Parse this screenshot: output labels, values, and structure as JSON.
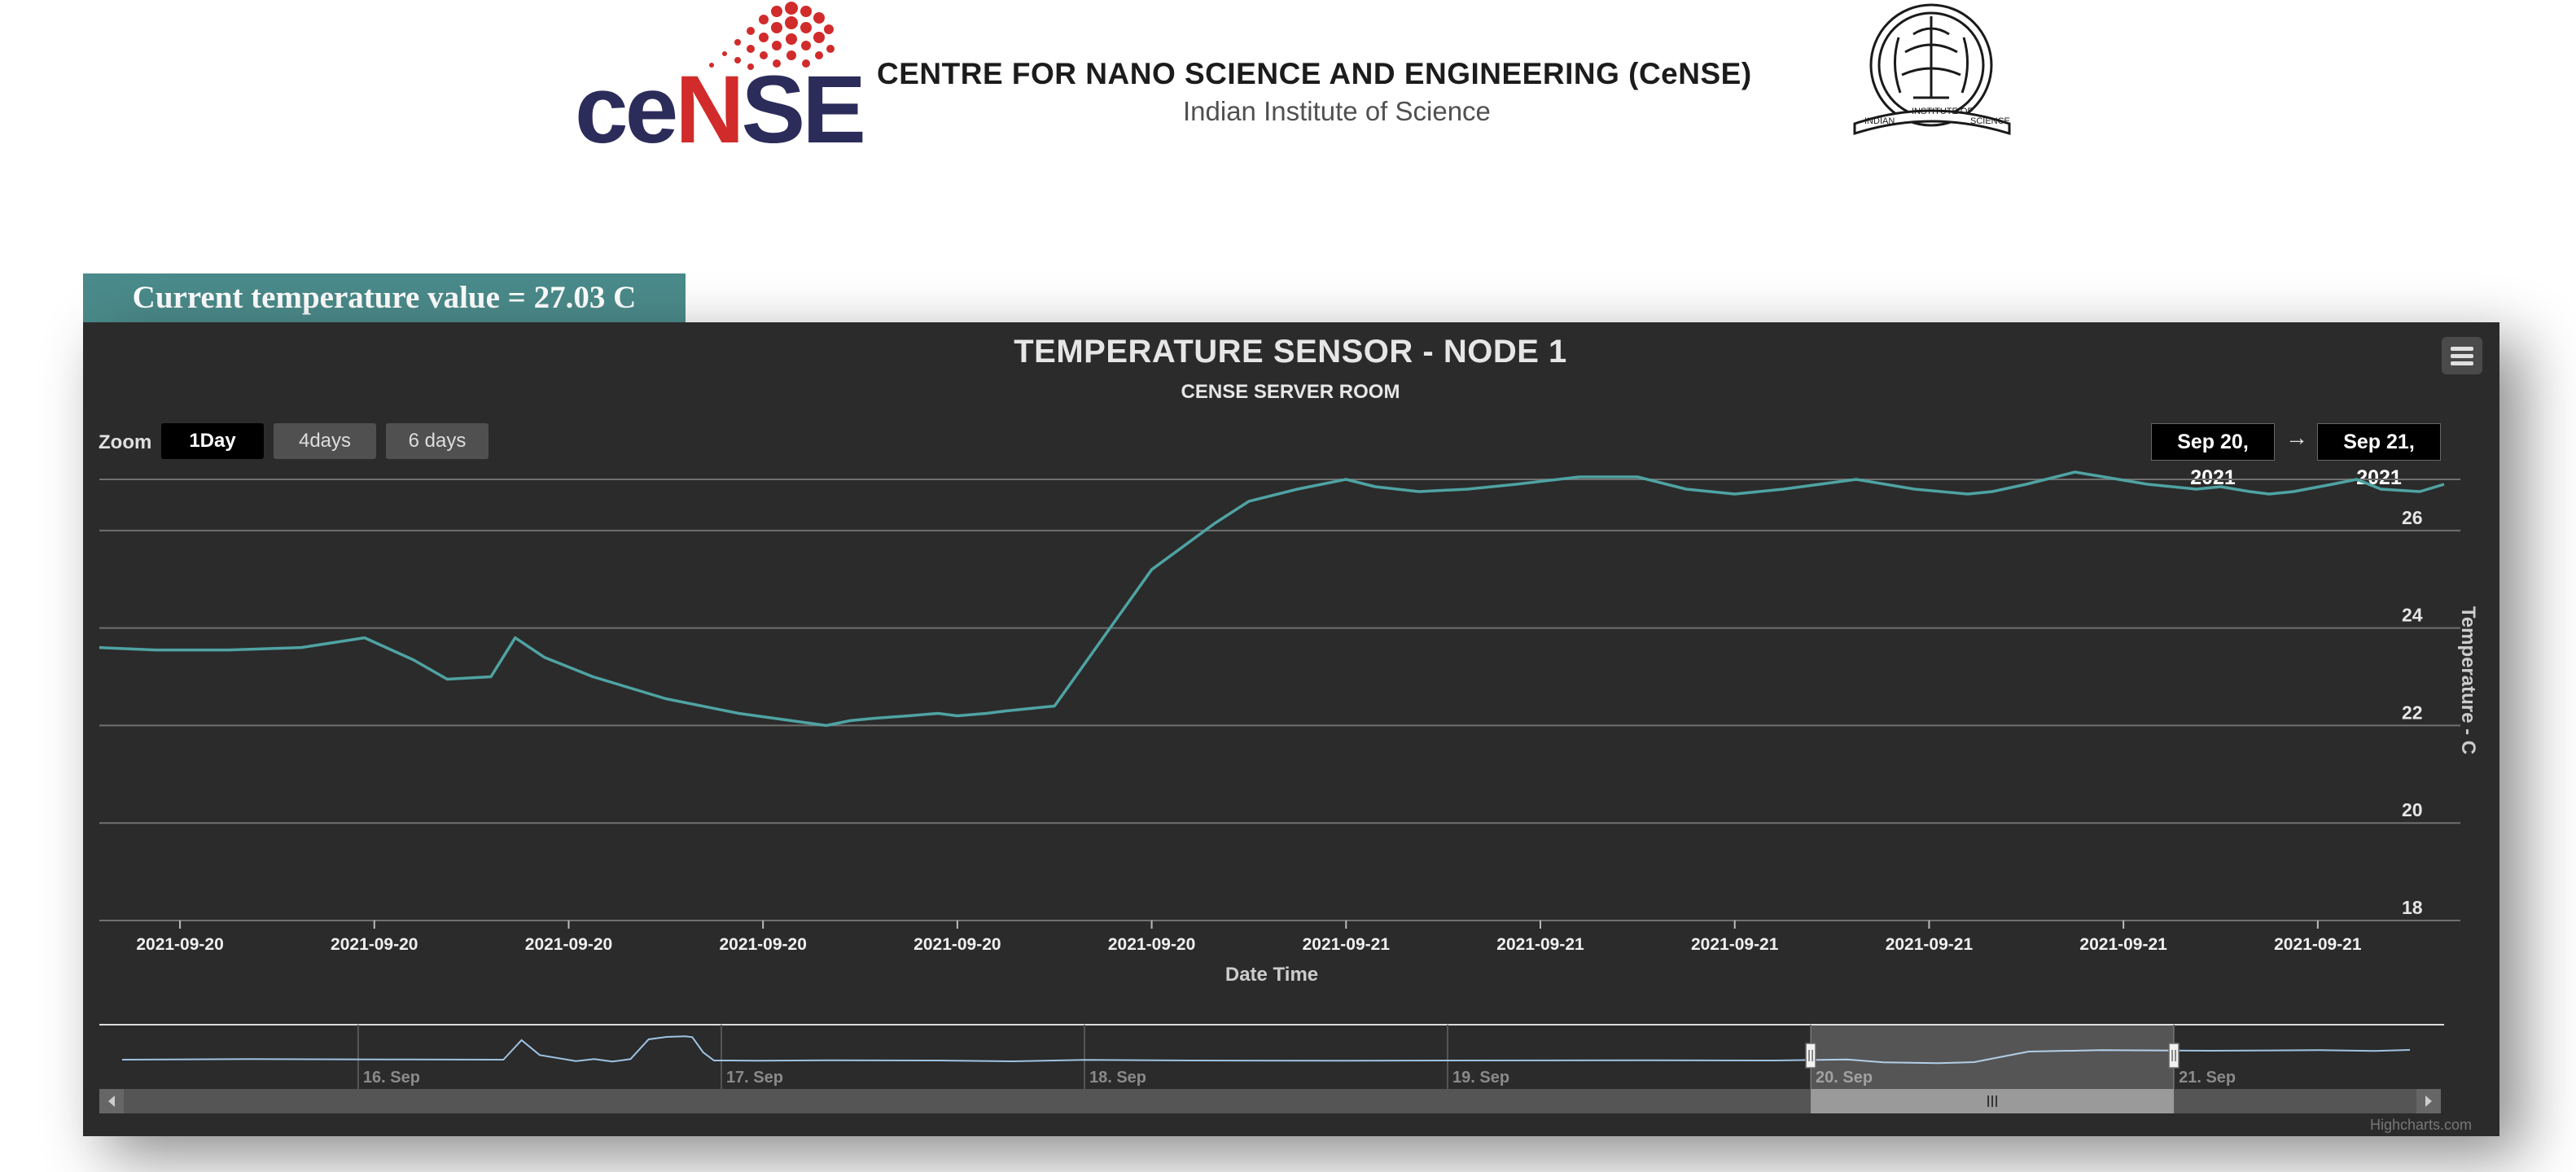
{
  "header": {
    "logo_text_left": "ce",
    "logo_text_red": "N",
    "logo_text_right": "SE",
    "title": "CENTRE FOR NANO SCIENCE AND ENGINEERING (CeNSE)",
    "subtitle": "Indian Institute of Science",
    "seal_text_left": "INDIAN",
    "seal_text_mid": "INSTITUTE OF",
    "seal_text_right": "SCIENCE"
  },
  "current_temperature": "Current temperature value = 27.03 C",
  "toolbar": {
    "zoom_label": "Zoom",
    "zoom_buttons": [
      "1Day",
      "4days",
      "6 days"
    ],
    "zoom_selected": "1Day",
    "range_from": "Sep 20, 2021",
    "range_arrow": "→",
    "range_to": "Sep 21, 2021"
  },
  "credits": "Highcharts.com",
  "colors": {
    "series": "#4fa3a3",
    "navigator_series": "#9fc3e3",
    "panel_background": "#2b2b2b",
    "banner": "#4a8a8a"
  },
  "chart_data": {
    "type": "line",
    "title": "TEMPERATURE SENSOR - NODE 1",
    "subtitle": "CENSE SERVER ROOM",
    "xlabel": "Date Time",
    "ylabel": "Temperature - C",
    "ylim": [
      18,
      27.2
    ],
    "yticks": [
      18,
      20,
      22,
      24,
      26
    ],
    "y_axis_side": "right",
    "grid": true,
    "x_tick_labels": [
      "2021-09-20",
      "2021-09-20",
      "2021-09-20",
      "2021-09-20",
      "2021-09-20",
      "2021-09-20",
      "2021-09-21",
      "2021-09-21",
      "2021-09-21",
      "2021-09-21",
      "2021-09-21",
      "2021-09-21"
    ],
    "x_ticks": [
      2,
      6,
      10,
      14,
      18,
      22,
      26,
      30,
      34,
      38,
      42,
      46
    ],
    "xlim": [
      0.34,
      48.6
    ],
    "series": [
      {
        "x": [
          0.34,
          1.5,
          3.0,
          4.5,
          5.8,
          6.8,
          7.5,
          8.4,
          8.9,
          9.5,
          10.5,
          12.0,
          13.5,
          15.3,
          15.8,
          16.3,
          17.0,
          17.6,
          18.0,
          18.6,
          19.0,
          20.0,
          21.0,
          22.0,
          23.3,
          24.0,
          25.0,
          26.0,
          26.6,
          27.5,
          28.5,
          29.5,
          30.8,
          32.0,
          33.0,
          34.0,
          35.0,
          36.5,
          37.7,
          38.8,
          39.3,
          40.0,
          41.0,
          42.5,
          43.5,
          44.0,
          44.6,
          45.0,
          45.5,
          46.3,
          46.8,
          47.3,
          48.1,
          48.6
        ],
        "values": [
          23.6,
          23.55,
          23.55,
          23.6,
          23.8,
          23.35,
          22.95,
          23.0,
          23.8,
          23.4,
          23.0,
          22.55,
          22.25,
          22.0,
          22.1,
          22.15,
          22.2,
          22.25,
          22.2,
          22.25,
          22.3,
          22.4,
          23.8,
          25.2,
          26.15,
          26.6,
          26.85,
          27.05,
          26.9,
          26.8,
          26.85,
          26.95,
          27.1,
          27.1,
          26.85,
          26.75,
          26.85,
          27.05,
          26.85,
          26.75,
          26.8,
          26.95,
          27.2,
          26.95,
          26.85,
          26.9,
          26.8,
          26.75,
          26.8,
          26.95,
          27.05,
          26.85,
          26.8,
          26.95
        ]
      }
    ],
    "navigator": {
      "labels": [
        "16. Sep",
        "17. Sep",
        "18. Sep",
        "19. Sep",
        "20. Sep",
        "21. Sep"
      ],
      "x_ticks": [
        16,
        17,
        18,
        19,
        20,
        21
      ],
      "xlim": [
        15.35,
        21.65
      ],
      "ylim": [
        14,
        35
      ],
      "selected_range": [
        20.0,
        21.0
      ],
      "x": [
        15.35,
        15.7,
        16.1,
        16.4,
        16.45,
        16.5,
        16.6,
        16.65,
        16.7,
        16.75,
        16.8,
        16.85,
        16.9,
        16.92,
        16.95,
        16.98,
        17.02,
        17.1,
        17.3,
        17.6,
        17.8,
        18.0,
        18.3,
        18.7,
        19.0,
        19.5,
        19.9,
        20.1,
        20.2,
        20.35,
        20.45,
        20.6,
        20.8,
        21.1,
        21.4,
        21.55,
        21.65
      ],
      "values": [
        23.3,
        23.5,
        23.4,
        23.3,
        30.5,
        25.0,
        22.8,
        23.5,
        22.6,
        23.5,
        30.8,
        31.7,
        31.9,
        31.6,
        26.0,
        23.0,
        23.0,
        22.9,
        23.1,
        23.0,
        22.7,
        23.2,
        23.0,
        22.9,
        23.0,
        23.1,
        23.0,
        23.4,
        22.3,
        22.0,
        22.4,
        26.3,
        26.8,
        26.6,
        26.8,
        26.5,
        26.9
      ]
    }
  }
}
